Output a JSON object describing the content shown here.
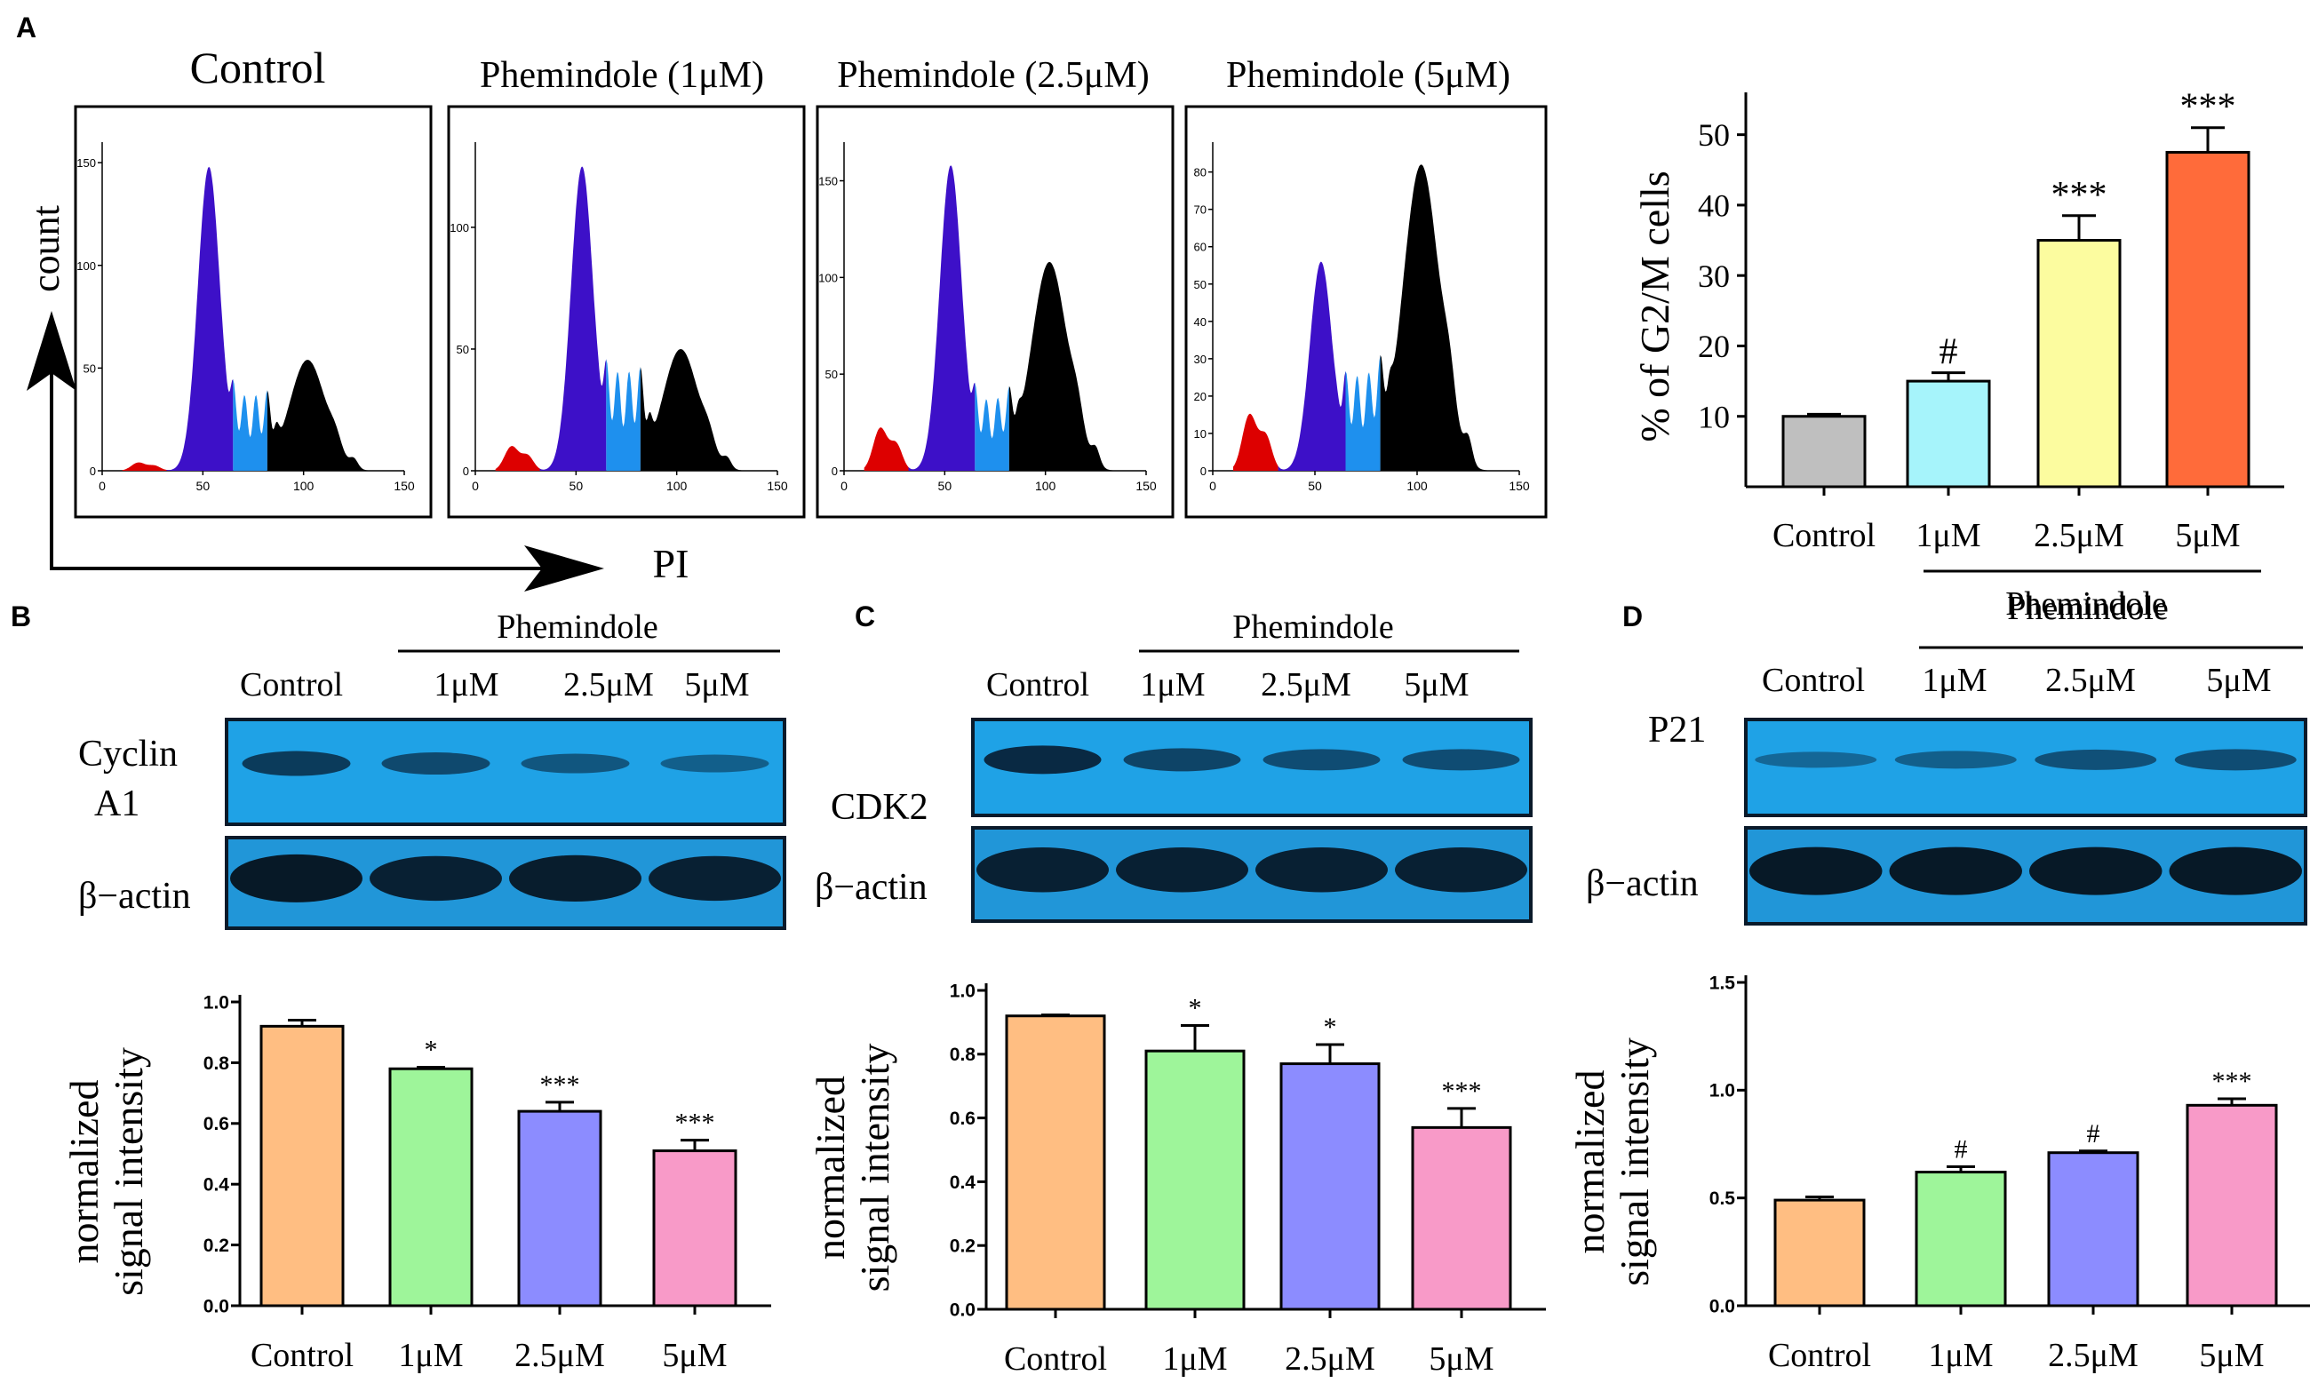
{
  "panel_labels": {
    "a": "A",
    "b": "B",
    "c": "C",
    "d": "D"
  },
  "treatment_label": "Phemindole",
  "histograms": {
    "y_axis_label": "count",
    "x_axis_label": "PI",
    "colors": {
      "sub_g1": "#dd0000",
      "g0_g1": "#3d10c8",
      "s_phase": "#1e90ee",
      "g2_m": "#000000",
      "frame": "#000000"
    },
    "panels": [
      {
        "title": "Control",
        "x_ticks": [
          "0",
          "50",
          "100",
          "150"
        ],
        "y_ticks": [
          "0",
          "50",
          "100",
          "150"
        ],
        "y_max": 160,
        "peaks": {
          "sub_g1": 4,
          "g0_g1": 148,
          "s_phase": 36,
          "g2_m": 54
        }
      },
      {
        "title": "Phemindole (1μM)",
        "x_ticks": [
          "0",
          "50",
          "100",
          "150"
        ],
        "y_ticks": [
          "0",
          "50",
          "100"
        ],
        "y_max": 135,
        "peaks": {
          "sub_g1": 10,
          "g0_g1": 125,
          "s_phase": 40,
          "g2_m": 50
        }
      },
      {
        "title": "Phemindole (2.5μM)",
        "x_ticks": [
          "0",
          "50",
          "100",
          "150"
        ],
        "y_ticks": [
          "0",
          "50",
          "100",
          "150"
        ],
        "y_max": 170,
        "peaks": {
          "sub_g1": 22,
          "g0_g1": 158,
          "s_phase": 36,
          "g2_m": 108
        }
      },
      {
        "title": "Phemindole (5μM)",
        "x_ticks": [
          "0",
          "50",
          "100",
          "150"
        ],
        "y_ticks": [
          "0",
          "10",
          "20",
          "30",
          "40",
          "50",
          "60",
          "70",
          "80"
        ],
        "y_max": 88,
        "peaks": {
          "sub_g1": 15,
          "g0_g1": 56,
          "s_phase": 25,
          "g2_m": 82
        }
      }
    ]
  },
  "blots": {
    "B": {
      "band_label_line1": "Cyclin",
      "band_label_line2": "A1",
      "actin_label": "β−actin",
      "lanes": [
        "Control",
        "1μM",
        "2.5μM",
        "5μM"
      ],
      "target_intensity": [
        0.8,
        0.65,
        0.5,
        0.4
      ],
      "actin_intensity": [
        1.0,
        0.9,
        0.95,
        0.9
      ]
    },
    "C": {
      "band_label_line1": "CDK2",
      "band_label_line2": "",
      "actin_label": "β−actin",
      "lanes": [
        "Control",
        "1μM",
        "2.5μM",
        "5μM"
      ],
      "target_intensity": [
        1.0,
        0.7,
        0.6,
        0.6
      ],
      "actin_intensity": [
        0.9,
        0.9,
        0.9,
        0.9
      ]
    },
    "D": {
      "band_label_line1": "P21",
      "band_label_line2": "",
      "actin_label": "β−actin",
      "lanes": [
        "Control",
        "1μM",
        "2.5μM",
        "5μM"
      ],
      "target_intensity": [
        0.3,
        0.4,
        0.55,
        0.6
      ],
      "actin_intensity": [
        1.0,
        1.0,
        1.0,
        1.0
      ]
    }
  },
  "chart_data": [
    {
      "id": "A",
      "type": "bar",
      "title": "",
      "xlabel": "",
      "ylabel": "% of G2/M cells",
      "categories": [
        "Control",
        "1μM",
        "2.5μM",
        "5μM"
      ],
      "values": [
        10,
        15,
        35,
        47.5
      ],
      "errors": [
        0.3,
        1.2,
        3.5,
        3.5
      ],
      "annotations": [
        "",
        "#",
        "***",
        "***"
      ],
      "colors": [
        "#bfbfbf",
        "#a6f4fb",
        "#fcfc9f",
        "#ff6b3a"
      ],
      "ylim": [
        0,
        55
      ],
      "y_ticks": [
        10,
        20,
        30,
        40,
        50
      ],
      "group_label": "Phemindole"
    },
    {
      "id": "B",
      "type": "bar",
      "title": "",
      "xlabel": "",
      "ylabel_line1": "normalized",
      "ylabel_line2": "signal intensity",
      "categories": [
        "Control",
        "1μM",
        "2.5μM",
        "5μM"
      ],
      "values": [
        0.92,
        0.78,
        0.64,
        0.51
      ],
      "errors": [
        0.02,
        0.005,
        0.03,
        0.035
      ],
      "annotations": [
        "",
        "*",
        "***",
        "***"
      ],
      "colors": [
        "#ffbe82",
        "#9ef59a",
        "#8c8cff",
        "#f89ac8"
      ],
      "ylim": [
        0,
        1.0
      ],
      "y_ticks": [
        "0.0",
        "0.2",
        "0.4",
        "0.6",
        "0.8",
        "1.0"
      ]
    },
    {
      "id": "C",
      "type": "bar",
      "title": "",
      "xlabel": "",
      "ylabel_line1": "normalized",
      "ylabel_line2": "signal intensity",
      "categories": [
        "Control",
        "1μM",
        "2.5μM",
        "5μM"
      ],
      "values": [
        0.92,
        0.81,
        0.77,
        0.57
      ],
      "errors": [
        0.003,
        0.08,
        0.06,
        0.06
      ],
      "annotations": [
        "",
        "*",
        "*",
        "***"
      ],
      "colors": [
        "#ffbe82",
        "#9ef59a",
        "#8c8cff",
        "#f89ac8"
      ],
      "ylim": [
        0,
        1.0
      ],
      "y_ticks": [
        "0.0",
        "0.2",
        "0.4",
        "0.6",
        "0.8",
        "1.0"
      ]
    },
    {
      "id": "D",
      "type": "bar",
      "title": "",
      "xlabel": "",
      "ylabel_line1": "normalized",
      "ylabel_line2": "signal intensity",
      "categories": [
        "Control",
        "1μM",
        "2.5μM",
        "5μM"
      ],
      "values": [
        0.49,
        0.62,
        0.71,
        0.93
      ],
      "errors": [
        0.015,
        0.025,
        0.008,
        0.03
      ],
      "annotations": [
        "",
        "#",
        "#",
        "***"
      ],
      "colors": [
        "#ffbe82",
        "#9ef59a",
        "#8c8cff",
        "#f89ac8"
      ],
      "ylim": [
        0,
        1.5
      ],
      "y_ticks": [
        "0.0",
        "0.5",
        "1.0",
        "1.5"
      ]
    }
  ]
}
